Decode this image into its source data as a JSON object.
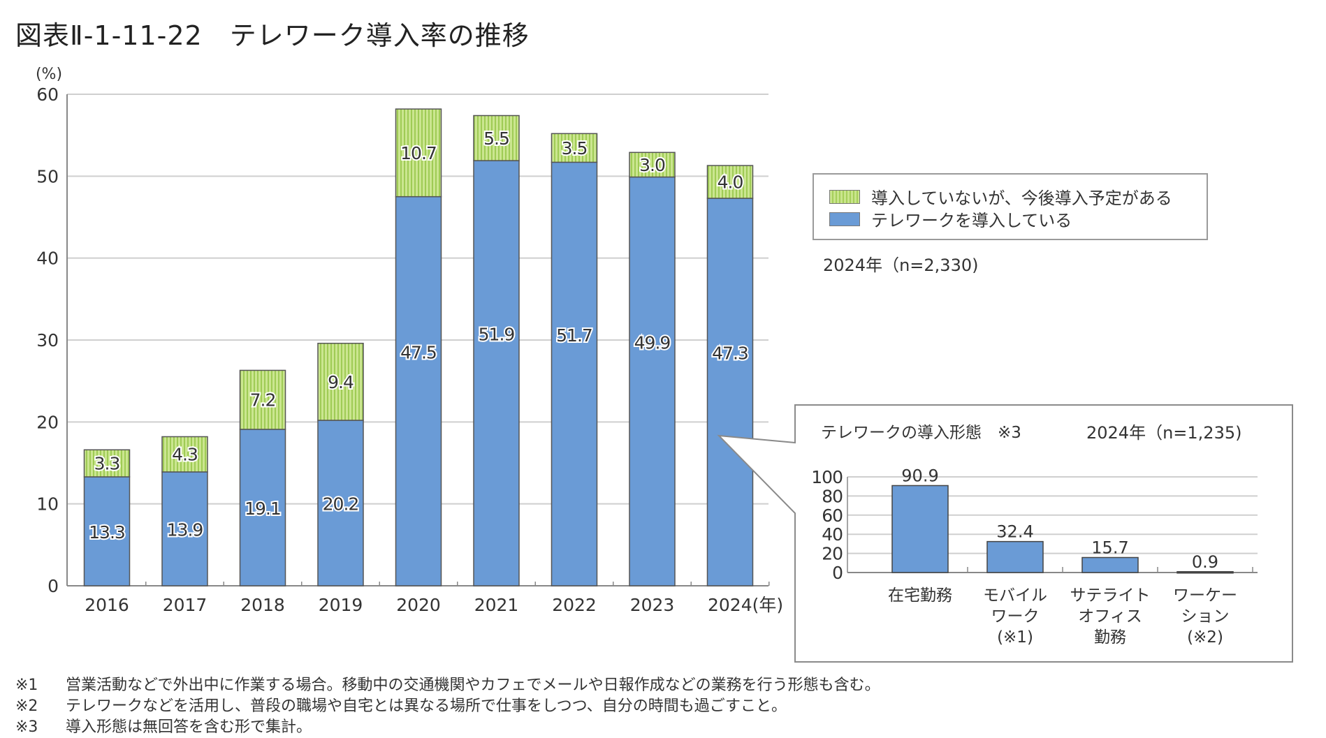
{
  "title": "図表Ⅱ-1-11-22　テレワーク導入率の推移",
  "chart_data": [
    {
      "type": "bar",
      "stacked": true,
      "title": "テレワーク導入率の推移",
      "ylabel": "(%)",
      "xlabel_suffix": "(年)",
      "ylim": [
        0,
        60
      ],
      "yticks": [
        0,
        10,
        20,
        30,
        40,
        50,
        60
      ],
      "grid": true,
      "categories": [
        "2016",
        "2017",
        "2018",
        "2019",
        "2020",
        "2021",
        "2022",
        "2023",
        "2024"
      ],
      "series": [
        {
          "name": "テレワークを導入している",
          "color": "#6a9bd6",
          "pattern": "solid",
          "values": [
            13.3,
            13.9,
            19.1,
            20.2,
            47.5,
            51.9,
            51.7,
            49.9,
            47.3
          ]
        },
        {
          "name": "導入していないが、今後導入予定がある",
          "color": "#b8dc74",
          "pattern": "vertical-stripes",
          "values": [
            3.3,
            4.3,
            7.2,
            9.4,
            10.7,
            5.5,
            3.5,
            3.0,
            4.0
          ]
        }
      ],
      "legend": {
        "position": "right",
        "entries": [
          "導入していないが、今後導入予定がある",
          "テレワークを導入している"
        ]
      },
      "annotation": "2024年（n=2,330)"
    },
    {
      "type": "bar",
      "title": "テレワークの導入形態　※3",
      "sample": "2024年（n=1,235)",
      "ylim": [
        0,
        100
      ],
      "yticks": [
        0,
        20,
        40,
        60,
        80,
        100
      ],
      "grid": true,
      "categories": [
        "在宅勤務",
        "モバイル\nワーク\n(※1)",
        "サテライト\nオフィス\n勤務",
        "ワーケー\nション\n(※2)"
      ],
      "values": [
        90.9,
        32.4,
        15.7,
        0.9
      ],
      "color": "#6a9bd6"
    }
  ],
  "footnotes": [
    {
      "mark": "※1",
      "text": "営業活動などで外出中に作業する場合。移動中の交通機関やカフェでメールや日報作成などの業務を行う形態も含む。"
    },
    {
      "mark": "※2",
      "text": "テレワークなどを活用し、普段の職場や自宅とは異なる場所で仕事をしつつ、自分の時間も過ごすこと。"
    },
    {
      "mark": "※3",
      "text": "導入形態は無回答を含む形で集計。"
    }
  ]
}
